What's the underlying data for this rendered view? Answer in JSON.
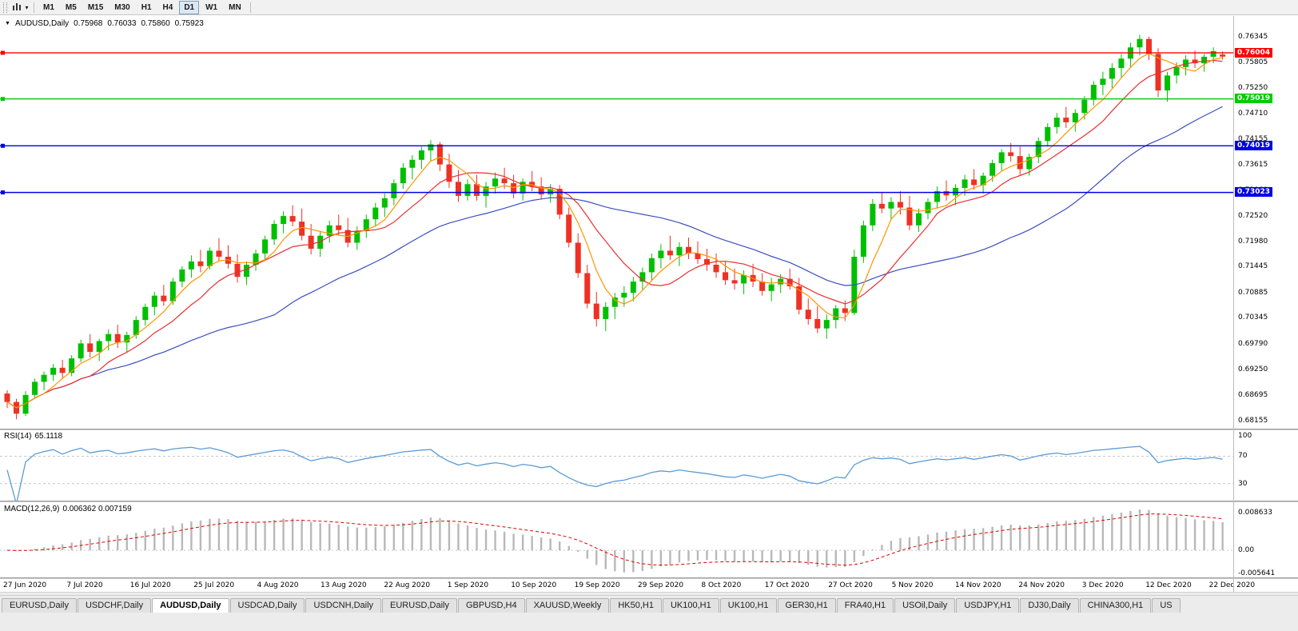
{
  "toolbar": {
    "timeframes": [
      "M1",
      "M5",
      "M15",
      "M30",
      "H1",
      "H4",
      "D1",
      "W1",
      "MN"
    ],
    "active_timeframe": "D1"
  },
  "chart": {
    "symbol": "AUDUSD,Daily",
    "ohlc": {
      "o": "0.75968",
      "h": "0.76033",
      "l": "0.75860",
      "c": "0.75923"
    }
  },
  "price_axis": {
    "labels": [
      "0.76345",
      "0.75805",
      "0.75250",
      "0.74710",
      "0.74155",
      "0.73615",
      "0.73060",
      "0.72520",
      "0.71980",
      "0.71445",
      "0.70885",
      "0.70345",
      "0.69790",
      "0.69250",
      "0.68695",
      "0.68155"
    ]
  },
  "indicators": {
    "rsi": {
      "name": "RSI(14)",
      "value": "65.1118",
      "axis_labels": [
        "100",
        "70",
        "30"
      ],
      "levels": [
        70,
        30
      ],
      "period": 14
    },
    "macd": {
      "name": "MACD(12,26,9)",
      "values": "0.006362 0.007159",
      "axis_labels": [
        "0.008633",
        "0.00",
        "-0.005641"
      ],
      "fast": 12,
      "slow": 26,
      "signal": 9
    }
  },
  "date_axis": {
    "labels": [
      "27 Jun 2020",
      "7 Jul 2020",
      "16 Jul 2020",
      "25 Jul 2020",
      "4 Aug 2020",
      "13 Aug 2020",
      "22 Aug 2020",
      "1 Sep 2020",
      "10 Sep 2020",
      "19 Sep 2020",
      "29 Sep 2020",
      "8 Oct 2020",
      "17 Oct 2020",
      "27 Oct 2020",
      "5 Nov 2020",
      "14 Nov 2020",
      "24 Nov 2020",
      "3 Dec 2020",
      "12 Dec 2020",
      "22 Dec 2020"
    ]
  },
  "tabs": {
    "active_index": 2,
    "items": [
      "EURUSD,Daily",
      "USDCHF,Daily",
      "AUDUSD,Daily",
      "USDCAD,Daily",
      "USDCNH,Daily",
      "EURUSD,Daily",
      "GBPUSD,H4",
      "XAUUSD,Weekly",
      "HK50,H1",
      "UK100,H1",
      "UK100,H1",
      "GER30,H1",
      "FRA40,H1",
      "USOil,Daily",
      "USDJPY,H1",
      "DJ30,Daily",
      "CHINA300,H1",
      "US"
    ]
  },
  "chart_data": {
    "type": "candlestick",
    "symbol": "AUDUSD",
    "timeframe": "Daily",
    "last_ohlc": [
      0.75968,
      0.76033,
      0.7586,
      0.75923
    ],
    "price_range": [
      0.6798,
      0.7679
    ],
    "hlines": [
      {
        "price": 0.76004,
        "label": "0.76004",
        "color": "#ff0000"
      },
      {
        "price": 0.75019,
        "label": "0.75019",
        "color": "#00cc00"
      },
      {
        "price": 0.74019,
        "label": "0.74019",
        "color": "#0000e6"
      },
      {
        "price": 0.73023,
        "label": "0.73023",
        "color": "#0000e6"
      }
    ],
    "moving_averages": [
      {
        "period": 30,
        "color": "#3a4fc0"
      },
      {
        "period": 10,
        "color": "#e83030"
      },
      {
        "period": 5,
        "color": "#ff9500"
      }
    ],
    "colors": {
      "up": "#00bf00",
      "down": "#ee3124",
      "rsi_line": "#5b9bd5",
      "macd_hist": "#b8b8b8",
      "macd_signal": "#e00000",
      "level_dash": "#c8c8c8"
    },
    "candles": [
      [
        0.6873,
        0.688,
        0.6842,
        0.6855
      ],
      [
        0.6855,
        0.6862,
        0.6818,
        0.683
      ],
      [
        0.683,
        0.6878,
        0.6825,
        0.687
      ],
      [
        0.687,
        0.6905,
        0.6862,
        0.6898
      ],
      [
        0.6898,
        0.692,
        0.688,
        0.6913
      ],
      [
        0.6913,
        0.6936,
        0.69,
        0.6928
      ],
      [
        0.6928,
        0.6945,
        0.6905,
        0.6917
      ],
      [
        0.6917,
        0.6955,
        0.691,
        0.6948
      ],
      [
        0.6948,
        0.6988,
        0.694,
        0.698
      ],
      [
        0.698,
        0.7,
        0.695,
        0.6962
      ],
      [
        0.6962,
        0.699,
        0.6942,
        0.6985
      ],
      [
        0.6985,
        0.701,
        0.6965,
        0.7
      ],
      [
        0.7,
        0.702,
        0.697,
        0.6982
      ],
      [
        0.6982,
        0.7005,
        0.696,
        0.6998
      ],
      [
        0.6998,
        0.7038,
        0.699,
        0.703
      ],
      [
        0.703,
        0.7065,
        0.7018,
        0.7058
      ],
      [
        0.7058,
        0.709,
        0.704,
        0.7082
      ],
      [
        0.7082,
        0.7105,
        0.706,
        0.707
      ],
      [
        0.707,
        0.712,
        0.7062,
        0.7112
      ],
      [
        0.7112,
        0.7145,
        0.71,
        0.7138
      ],
      [
        0.7138,
        0.7168,
        0.712,
        0.7155
      ],
      [
        0.7155,
        0.718,
        0.7132,
        0.7145
      ],
      [
        0.7145,
        0.7185,
        0.7138,
        0.7178
      ],
      [
        0.7178,
        0.7205,
        0.7155,
        0.7165
      ],
      [
        0.7165,
        0.719,
        0.714,
        0.715
      ],
      [
        0.715,
        0.717,
        0.711,
        0.7122
      ],
      [
        0.7122,
        0.7155,
        0.7105,
        0.7148
      ],
      [
        0.7148,
        0.718,
        0.7135,
        0.7172
      ],
      [
        0.7172,
        0.721,
        0.716,
        0.7202
      ],
      [
        0.7202,
        0.7243,
        0.719,
        0.7235
      ],
      [
        0.7235,
        0.7262,
        0.7215,
        0.7252
      ],
      [
        0.7252,
        0.7275,
        0.723,
        0.724
      ],
      [
        0.724,
        0.7268,
        0.72,
        0.721
      ],
      [
        0.721,
        0.7235,
        0.717,
        0.7182
      ],
      [
        0.7182,
        0.722,
        0.7165,
        0.721
      ],
      [
        0.721,
        0.7242,
        0.7195,
        0.7232
      ],
      [
        0.7232,
        0.7255,
        0.721,
        0.7222
      ],
      [
        0.7222,
        0.7248,
        0.7185,
        0.7195
      ],
      [
        0.7195,
        0.723,
        0.718,
        0.722
      ],
      [
        0.722,
        0.7255,
        0.7205,
        0.7245
      ],
      [
        0.7245,
        0.728,
        0.723,
        0.727
      ],
      [
        0.727,
        0.73,
        0.725,
        0.729
      ],
      [
        0.729,
        0.733,
        0.7275,
        0.7322
      ],
      [
        0.7322,
        0.7365,
        0.731,
        0.7355
      ],
      [
        0.7355,
        0.7382,
        0.733,
        0.7372
      ],
      [
        0.7372,
        0.74,
        0.7352,
        0.7392
      ],
      [
        0.7392,
        0.7414,
        0.7368,
        0.7405
      ],
      [
        0.7405,
        0.741,
        0.7348,
        0.7362
      ],
      [
        0.7362,
        0.7385,
        0.7312,
        0.7325
      ],
      [
        0.7325,
        0.735,
        0.7282,
        0.7295
      ],
      [
        0.7295,
        0.733,
        0.7285,
        0.732
      ],
      [
        0.732,
        0.734,
        0.7285,
        0.7295
      ],
      [
        0.7295,
        0.7325,
        0.727,
        0.7315
      ],
      [
        0.7315,
        0.7345,
        0.73,
        0.7332
      ],
      [
        0.7332,
        0.7355,
        0.731,
        0.7322
      ],
      [
        0.7322,
        0.734,
        0.729,
        0.73
      ],
      [
        0.73,
        0.7332,
        0.7285,
        0.7325
      ],
      [
        0.7325,
        0.7348,
        0.7305,
        0.7315
      ],
      [
        0.7315,
        0.7335,
        0.7288,
        0.7298
      ],
      [
        0.7298,
        0.732,
        0.728,
        0.731
      ],
      [
        0.731,
        0.7318,
        0.7245,
        0.7255
      ],
      [
        0.7255,
        0.727,
        0.7185,
        0.7195
      ],
      [
        0.7195,
        0.7215,
        0.712,
        0.713
      ],
      [
        0.713,
        0.7148,
        0.7055,
        0.7065
      ],
      [
        0.7065,
        0.709,
        0.7016,
        0.7032
      ],
      [
        0.7032,
        0.7068,
        0.7006,
        0.7058
      ],
      [
        0.7058,
        0.7088,
        0.7032,
        0.7078
      ],
      [
        0.7078,
        0.7102,
        0.7058,
        0.7088
      ],
      [
        0.7088,
        0.7122,
        0.707,
        0.7112
      ],
      [
        0.7112,
        0.7142,
        0.7095,
        0.7132
      ],
      [
        0.7132,
        0.7172,
        0.7115,
        0.7162
      ],
      [
        0.7162,
        0.7192,
        0.714,
        0.7178
      ],
      [
        0.7178,
        0.721,
        0.7158,
        0.7168
      ],
      [
        0.7168,
        0.7196,
        0.7145,
        0.7186
      ],
      [
        0.7186,
        0.7206,
        0.716,
        0.7172
      ],
      [
        0.7172,
        0.7198,
        0.715,
        0.716
      ],
      [
        0.716,
        0.7182,
        0.7135,
        0.7148
      ],
      [
        0.7148,
        0.7172,
        0.712,
        0.7132
      ],
      [
        0.7132,
        0.7156,
        0.7105,
        0.7115
      ],
      [
        0.7115,
        0.714,
        0.7095,
        0.7108
      ],
      [
        0.7108,
        0.7136,
        0.7085,
        0.7126
      ],
      [
        0.7126,
        0.715,
        0.71,
        0.7112
      ],
      [
        0.7112,
        0.713,
        0.7082,
        0.7092
      ],
      [
        0.7092,
        0.712,
        0.707,
        0.7106
      ],
      [
        0.7106,
        0.7128,
        0.7088,
        0.7118
      ],
      [
        0.7118,
        0.714,
        0.7095,
        0.7102
      ],
      [
        0.7102,
        0.712,
        0.7042,
        0.7052
      ],
      [
        0.7052,
        0.7076,
        0.702,
        0.7032
      ],
      [
        0.7032,
        0.706,
        0.7002,
        0.7012
      ],
      [
        0.7012,
        0.7042,
        0.699,
        0.703
      ],
      [
        0.703,
        0.7062,
        0.7012,
        0.7055
      ],
      [
        0.7055,
        0.7072,
        0.7028,
        0.7045
      ],
      [
        0.7045,
        0.718,
        0.704,
        0.7165
      ],
      [
        0.7165,
        0.7242,
        0.7152,
        0.7232
      ],
      [
        0.7232,
        0.7288,
        0.722,
        0.7278
      ],
      [
        0.7278,
        0.7302,
        0.7258,
        0.7268
      ],
      [
        0.7268,
        0.7292,
        0.7245,
        0.7282
      ],
      [
        0.7282,
        0.7305,
        0.7255,
        0.727
      ],
      [
        0.727,
        0.7295,
        0.7222,
        0.7232
      ],
      [
        0.7232,
        0.7268,
        0.7218,
        0.7258
      ],
      [
        0.7258,
        0.729,
        0.7245,
        0.7282
      ],
      [
        0.7282,
        0.7315,
        0.7268,
        0.7305
      ],
      [
        0.7305,
        0.7328,
        0.7285,
        0.7296
      ],
      [
        0.7296,
        0.732,
        0.7275,
        0.7312
      ],
      [
        0.7312,
        0.734,
        0.7295,
        0.733
      ],
      [
        0.733,
        0.7352,
        0.7308,
        0.7318
      ],
      [
        0.7318,
        0.7345,
        0.73,
        0.7338
      ],
      [
        0.7338,
        0.7372,
        0.7325,
        0.7365
      ],
      [
        0.7365,
        0.7395,
        0.7348,
        0.7388
      ],
      [
        0.7388,
        0.7408,
        0.7368,
        0.738
      ],
      [
        0.738,
        0.74,
        0.734,
        0.7352
      ],
      [
        0.7352,
        0.7385,
        0.7338,
        0.7378
      ],
      [
        0.7378,
        0.742,
        0.7365,
        0.7412
      ],
      [
        0.7412,
        0.745,
        0.74,
        0.7442
      ],
      [
        0.7442,
        0.7472,
        0.7428,
        0.7462
      ],
      [
        0.7462,
        0.7485,
        0.744,
        0.7452
      ],
      [
        0.7452,
        0.748,
        0.7432,
        0.7472
      ],
      [
        0.7472,
        0.7508,
        0.7458,
        0.75
      ],
      [
        0.75,
        0.754,
        0.7488,
        0.7532
      ],
      [
        0.7532,
        0.756,
        0.751,
        0.7545
      ],
      [
        0.7545,
        0.7578,
        0.7525,
        0.7568
      ],
      [
        0.7568,
        0.7598,
        0.7548,
        0.7588
      ],
      [
        0.7588,
        0.7622,
        0.757,
        0.7612
      ],
      [
        0.7612,
        0.7639,
        0.7595,
        0.763
      ],
      [
        0.763,
        0.7635,
        0.7585,
        0.7598
      ],
      [
        0.7598,
        0.761,
        0.7506,
        0.752
      ],
      [
        0.752,
        0.756,
        0.7496,
        0.7552
      ],
      [
        0.7552,
        0.758,
        0.7535,
        0.757
      ],
      [
        0.757,
        0.7595,
        0.7552,
        0.7586
      ],
      [
        0.7586,
        0.7605,
        0.7568,
        0.7578
      ],
      [
        0.7578,
        0.7598,
        0.756,
        0.7592
      ],
      [
        0.7592,
        0.7612,
        0.7578,
        0.7604
      ],
      [
        0.75968,
        0.76033,
        0.7586,
        0.75923
      ]
    ]
  }
}
